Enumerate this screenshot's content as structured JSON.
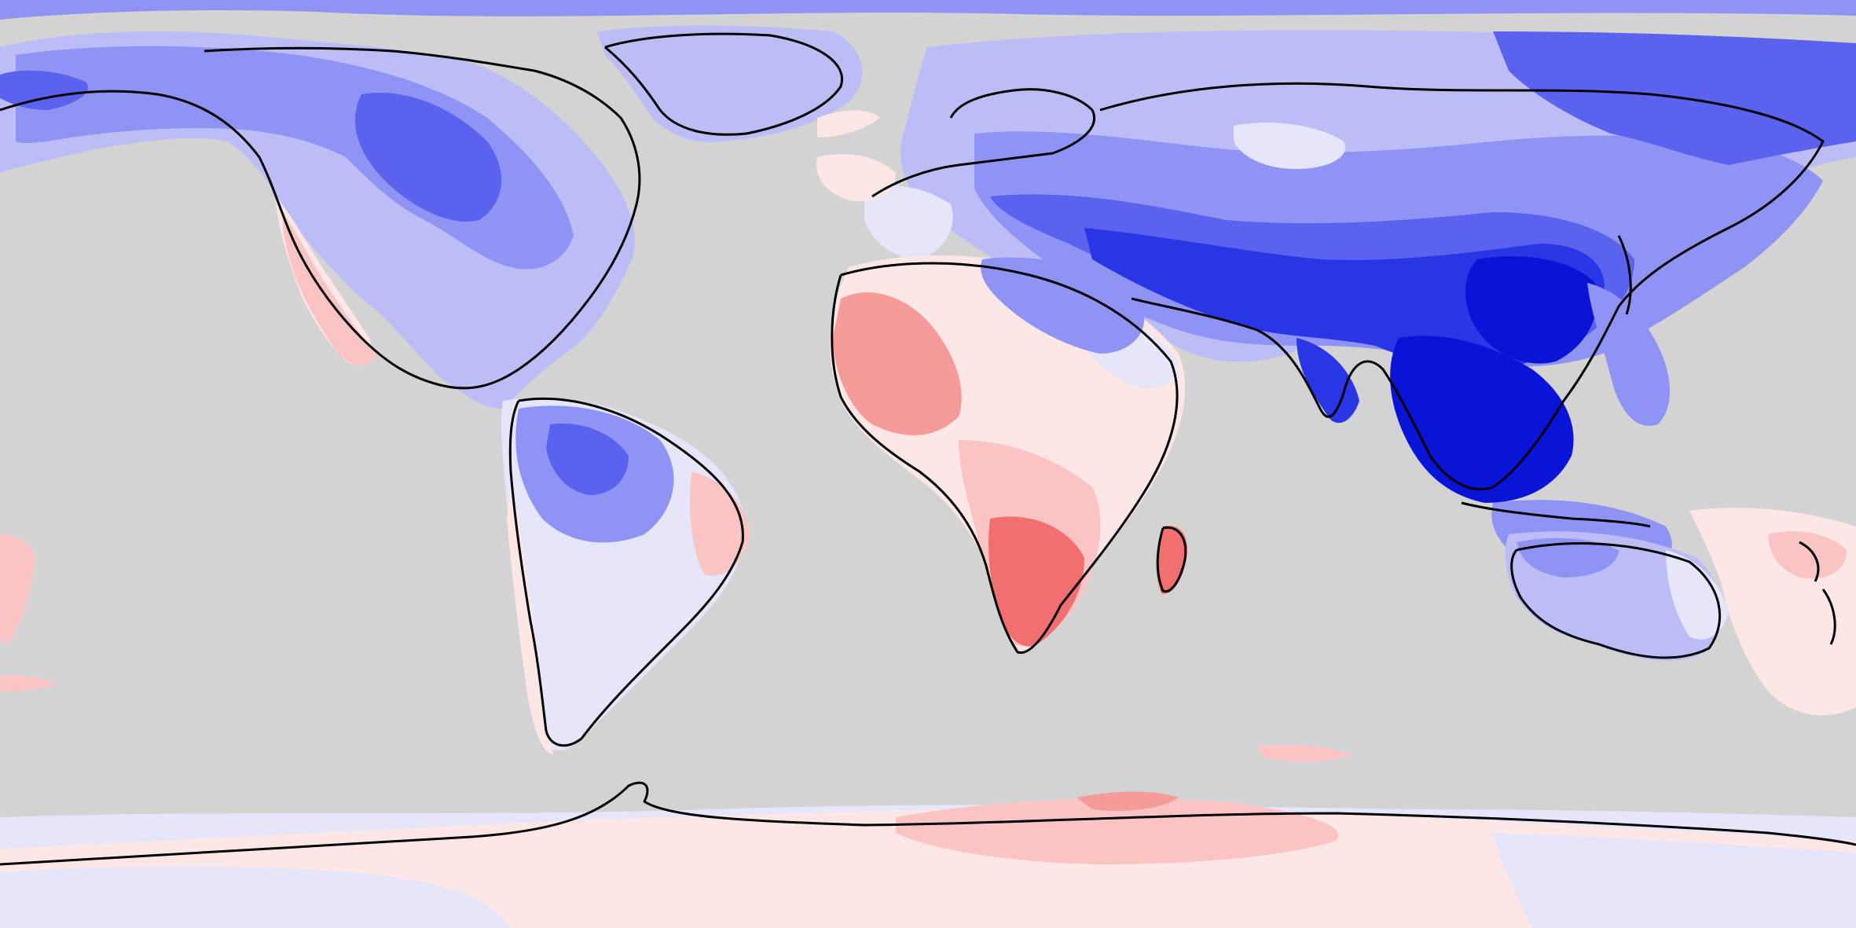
{
  "map": {
    "projection": "equirectangular",
    "ocean_color": "#d3d3d3",
    "coastline_color": "#000000",
    "color_scale": {
      "type": "diverging",
      "levels": [
        {
          "name": "strong-negative",
          "color": "#0a14d6"
        },
        {
          "name": "negative-4",
          "color": "#2a35e6"
        },
        {
          "name": "negative-3",
          "color": "#5b62ee"
        },
        {
          "name": "negative-2",
          "color": "#8f93f3"
        },
        {
          "name": "negative-1",
          "color": "#bcbdf7"
        },
        {
          "name": "near-zero-negative",
          "color": "#e6e6fb"
        },
        {
          "name": "near-zero-positive",
          "color": "#fde6e6"
        },
        {
          "name": "positive-1",
          "color": "#fbc4c4"
        },
        {
          "name": "positive-2",
          "color": "#f79a9a"
        },
        {
          "name": "positive-3",
          "color": "#f26f6f"
        }
      ]
    },
    "regions": [
      {
        "name": "arctic-ocean-cap",
        "level": "negative-2"
      },
      {
        "name": "north-america",
        "level": "negative-2"
      },
      {
        "name": "greenland",
        "level": "negative-1"
      },
      {
        "name": "eurasia",
        "level": "negative-2"
      },
      {
        "name": "south-asia",
        "level": "negative-4"
      },
      {
        "name": "southeast-asia",
        "level": "strong-negative"
      },
      {
        "name": "west-africa",
        "level": "positive-2"
      },
      {
        "name": "southern-africa",
        "level": "positive-3"
      },
      {
        "name": "madagascar",
        "level": "positive-3"
      },
      {
        "name": "south-america-north",
        "level": "negative-2"
      },
      {
        "name": "south-america-south",
        "level": "near-zero-negative"
      },
      {
        "name": "australia",
        "level": "negative-1"
      },
      {
        "name": "new-zealand",
        "level": "near-zero-positive"
      },
      {
        "name": "antarctica",
        "level": "near-zero-negative"
      },
      {
        "name": "antarctic-warm-patch",
        "level": "positive-1"
      }
    ]
  }
}
